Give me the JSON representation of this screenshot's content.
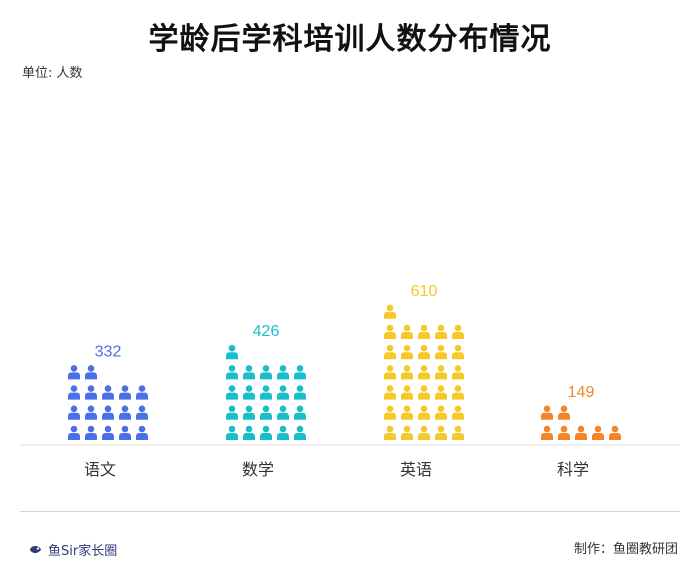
{
  "title": "学龄后学科培训人数分布情况",
  "unit_label": "单位: 人数",
  "footer": {
    "brand": "鱼Sir家长圈",
    "credit": "制作：鱼圈教研团"
  },
  "chart_data": {
    "type": "bar",
    "style": "pictogram",
    "icon": "person-icon",
    "categories": [
      "语文",
      "数学",
      "英语",
      "科学"
    ],
    "values": [
      332,
      426,
      610,
      149
    ],
    "colors": [
      "#4b6fe6",
      "#18bfc9",
      "#f5c928",
      "#f58426"
    ],
    "title": "学龄后学科培训人数分布情况",
    "ylabel": "单位: 人数",
    "grid": false,
    "legend": "none"
  }
}
